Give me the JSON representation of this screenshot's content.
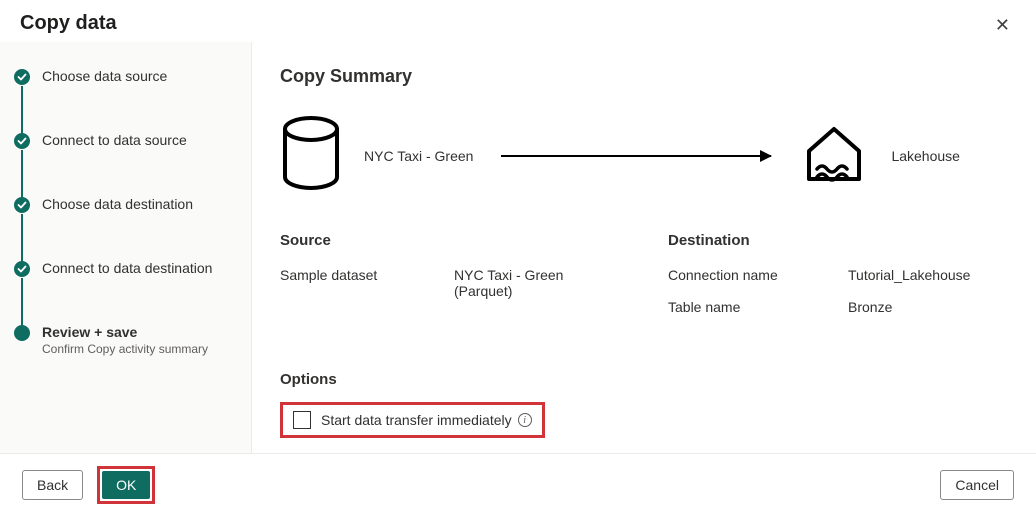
{
  "colors": {
    "accent": "#0f6c60",
    "highlight": "#d13438",
    "sidebar_bg": "#fafaf9",
    "text": "#323130",
    "muted": "#605e5c"
  },
  "dialog": {
    "title": "Copy data"
  },
  "steps": [
    {
      "label": "Choose data source",
      "state": "done"
    },
    {
      "label": "Connect to data source",
      "state": "done"
    },
    {
      "label": "Choose data destination",
      "state": "done"
    },
    {
      "label": "Connect to data destination",
      "state": "done"
    },
    {
      "label": "Review + save",
      "state": "active",
      "sub": "Confirm Copy activity summary"
    }
  ],
  "summary": {
    "heading": "Copy Summary",
    "source_name": "NYC Taxi - Green",
    "dest_name": "Lakehouse"
  },
  "source": {
    "heading": "Source",
    "rows": [
      {
        "k": "Sample dataset",
        "v": "NYC Taxi - Green (Parquet)"
      }
    ]
  },
  "destination": {
    "heading": "Destination",
    "rows": [
      {
        "k": "Connection name",
        "v": "Tutorial_Lakehouse"
      },
      {
        "k": "Table name",
        "v": "Bronze"
      }
    ]
  },
  "options": {
    "heading": "Options",
    "start_immediately_label": "Start data transfer immediately",
    "start_immediately_checked": false
  },
  "buttons": {
    "back": "Back",
    "ok": "OK",
    "cancel": "Cancel"
  }
}
